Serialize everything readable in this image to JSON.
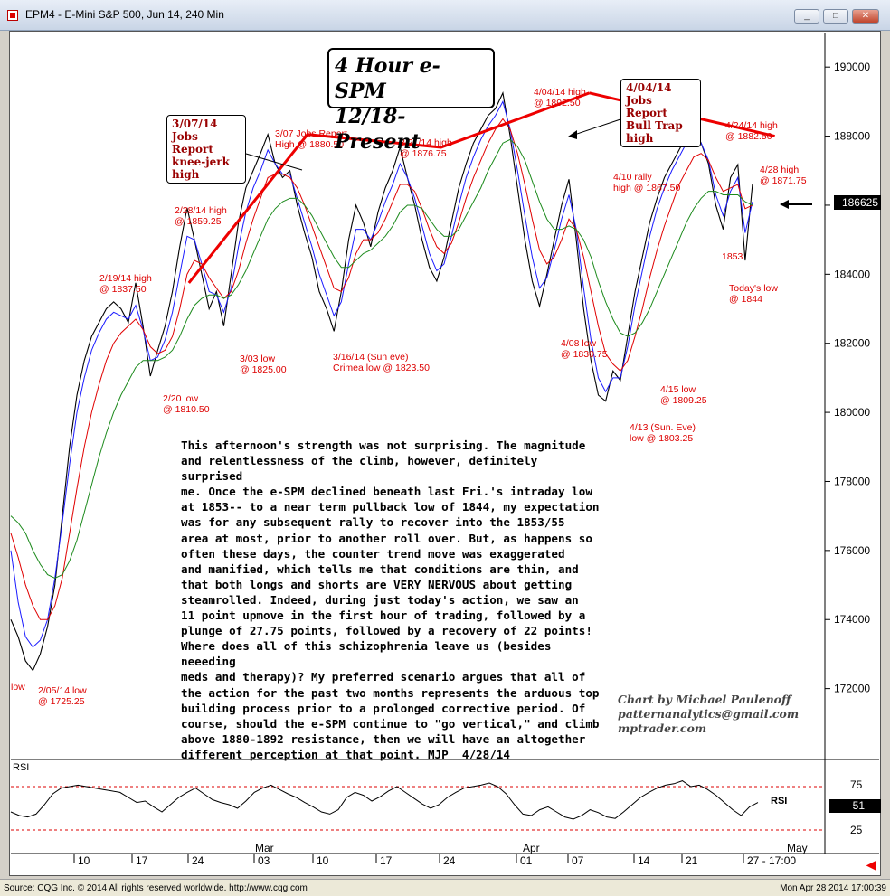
{
  "window": {
    "title": "EPM4 - E-Mini S&P 500, Jun 14, 240 Min",
    "minimize": "_",
    "maximize": "□",
    "close": "✕"
  },
  "chart_title": [
    "4 Hour e-SPM",
    "12/18-Present"
  ],
  "last_price": "186625",
  "rsi": {
    "label": "RSI",
    "legend": "RSI",
    "value": "51",
    "levels": [
      "75",
      "25"
    ]
  },
  "y_axis": {
    "labels": [
      "190000",
      "188000",
      "186000",
      "184000",
      "182000",
      "180000",
      "178000",
      "176000",
      "174000",
      "172000"
    ]
  },
  "x_axis": {
    "day_labels": [
      "10",
      "17",
      "24",
      "03",
      "10",
      "17",
      "24",
      "01",
      "07",
      "14",
      "21",
      "27 - 17:00"
    ],
    "month_labels": [
      "Mar",
      "Apr",
      "May"
    ]
  },
  "callouts": [
    {
      "lines": [
        "3/07/14",
        "Jobs Report",
        "knee-jerk",
        "high"
      ]
    },
    {
      "lines": [
        "4/04/14",
        "Jobs Report",
        "Bull Trap",
        "high"
      ]
    }
  ],
  "annotations": [
    {
      "lines": [
        "3/07 Jobs Report",
        "High @ 1880.50"
      ]
    },
    {
      "lines": [
        "3/21/14 high",
        "@ 1876.75"
      ]
    },
    {
      "lines": [
        "4/04/14 high",
        "@ 1892.50"
      ]
    },
    {
      "lines": [
        "4/24/14 high",
        "@ 1882.50"
      ]
    },
    {
      "lines": [
        "4/28 high",
        "@ 1871.75"
      ]
    },
    {
      "lines": [
        "4/10 rally",
        "high @ 1867.50"
      ]
    },
    {
      "lines": [
        "2/28/14 high",
        "@ 1859.25"
      ]
    },
    {
      "lines": [
        "2/19/14  high",
        "@ 1837.50"
      ]
    },
    {
      "lines": [
        "1853"
      ]
    },
    {
      "lines": [
        "Today's low",
        "@ 1844"
      ]
    },
    {
      "lines": [
        "3/03 low",
        "@ 1825.00"
      ]
    },
    {
      "lines": [
        "3/16/14 (Sun eve)",
        "Crimea low @ 1823.50"
      ]
    },
    {
      "lines": [
        "4/08 low",
        "@ 1830.75"
      ]
    },
    {
      "lines": [
        "2/20 low",
        "@ 1810.50"
      ]
    },
    {
      "lines": [
        "4/15 low",
        "@ 1809.25"
      ]
    },
    {
      "lines": [
        "4/13 (Sun. Eve)",
        "low @ 1803.25"
      ]
    },
    {
      "lines": [
        "2/05/14 low",
        "@ 1725.25"
      ]
    },
    {
      "lines": [
        "low"
      ]
    }
  ],
  "commentary": "This afternoon's strength was not surprising. The magnitude\nand relentlessness of the climb, however, definitely surprised\nme. Once the e-SPM declined beneath last Fri.'s intraday low\nat 1853-- to a near term pullback low of 1844, my expectation\nwas for any subsequent rally to recover into the 1853/55\narea at most, prior to another roll over. But, as happens so\noften these days, the counter trend move was exaggerated\nand manified, which tells me that conditions are thin, and\nthat both longs and shorts are VERY NERVOUS about getting\nsteamrolled. Indeed, during just today's action, we saw an\n11 point upmove in the first hour of trading, followed by a\nplunge of 27.75 points, followed by a recovery of 22 points!\nWhere does all of this schizophrenia leave us (besides neeeding\nmeds and therapy)? My preferred scenario argues that all of\nthe action for the past two months represents the arduous top\nbuilding process prior to a prolonged corrective period. Of\ncourse, should the e-SPM continue to \"go vertical,\" and climb\nabove 1880-1892 resistance, then we will have an altogether\ndifferent perception at that point. MJP  4/28/14",
  "credit": [
    "Chart by Michael Paulenoff",
    "patternanalytics@gmail.com",
    "mptrader.com"
  ],
  "status": {
    "left": "Source: CQG Inc. © 2014 All rights reserved worldwide. http://www.cqg.com",
    "right": "Mon Apr 28 2014 17:00:39"
  },
  "chart_data": {
    "type": "line",
    "title": "4 Hour e-SPM 12/18-Present",
    "ylim": [
      1700,
      1910
    ],
    "y_ticks": [
      1720,
      1740,
      1760,
      1780,
      1800,
      1820,
      1840,
      1860,
      1880,
      1900
    ],
    "series": [
      {
        "values": [
          1740,
          1735,
          1728,
          1725.25,
          1730,
          1738,
          1750,
          1770,
          1790,
          1805,
          1815,
          1822,
          1826,
          1830,
          1832,
          1830,
          1826,
          1837.5,
          1825,
          1810.5,
          1818,
          1825,
          1835,
          1848,
          1859.25,
          1850,
          1840,
          1830,
          1835,
          1825,
          1840,
          1855,
          1865,
          1870,
          1875,
          1880.5,
          1872,
          1868,
          1870,
          1860,
          1852,
          1845,
          1835,
          1830,
          1823.5,
          1835,
          1850,
          1860,
          1855,
          1848,
          1858,
          1865,
          1870,
          1876.75,
          1868,
          1860,
          1850,
          1842,
          1838,
          1845,
          1855,
          1865,
          1872,
          1878,
          1882,
          1886,
          1888,
          1892.5,
          1880,
          1865,
          1850,
          1838,
          1830.75,
          1840,
          1850,
          1860,
          1867.5,
          1850,
          1830,
          1815,
          1805,
          1803.25,
          1812,
          1809.25,
          1822,
          1835,
          1845,
          1855,
          1862,
          1868,
          1872,
          1876,
          1880,
          1882.5,
          1878,
          1872,
          1860,
          1853,
          1868,
          1871.75,
          1844,
          1866.25
        ]
      },
      {
        "values": [
          1760,
          1745,
          1735,
          1732,
          1734,
          1740,
          1752,
          1768,
          1785,
          1800,
          1810,
          1818,
          1823,
          1827,
          1829,
          1828,
          1827,
          1831,
          1824,
          1815,
          1816,
          1821,
          1829,
          1840,
          1851,
          1850,
          1843,
          1835,
          1834,
          1829,
          1836,
          1848,
          1858,
          1865,
          1870,
          1876,
          1872,
          1869,
          1869,
          1862,
          1855,
          1848,
          1840,
          1834,
          1828,
          1832,
          1843,
          1853,
          1853,
          1850,
          1855,
          1861,
          1866,
          1872,
          1868,
          1862,
          1854,
          1846,
          1841,
          1843,
          1851,
          1860,
          1868,
          1874,
          1879,
          1883,
          1886,
          1890,
          1882,
          1870,
          1857,
          1845,
          1836,
          1839,
          1847,
          1856,
          1863,
          1853,
          1836,
          1821,
          1810,
          1806,
          1810,
          1810,
          1819,
          1831,
          1841,
          1851,
          1859,
          1865,
          1870,
          1874,
          1878,
          1881,
          1878,
          1873,
          1863,
          1857,
          1864,
          1868,
          1852,
          1861
        ]
      },
      {
        "values": [
          1765,
          1758,
          1750,
          1744,
          1740,
          1740,
          1744,
          1752,
          1765,
          1778,
          1790,
          1800,
          1808,
          1815,
          1820,
          1823,
          1825,
          1827,
          1824,
          1819,
          1817,
          1818,
          1822,
          1830,
          1840,
          1844,
          1843,
          1839,
          1836,
          1833,
          1835,
          1841,
          1849,
          1856,
          1862,
          1868,
          1869,
          1869,
          1868,
          1865,
          1860,
          1854,
          1848,
          1842,
          1836,
          1835,
          1839,
          1846,
          1850,
          1850,
          1852,
          1856,
          1861,
          1866,
          1866,
          1864,
          1859,
          1853,
          1848,
          1846,
          1849,
          1855,
          1862,
          1868,
          1873,
          1878,
          1882,
          1885,
          1882,
          1875,
          1866,
          1856,
          1847,
          1843,
          1845,
          1850,
          1856,
          1853,
          1845,
          1835,
          1825,
          1817,
          1814,
          1812,
          1815,
          1822,
          1830,
          1839,
          1847,
          1854,
          1860,
          1866,
          1870,
          1874,
          1875,
          1873,
          1868,
          1864,
          1865,
          1866,
          1859,
          1860
        ]
      },
      {
        "values": [
          1770,
          1768,
          1765,
          1760,
          1756,
          1753,
          1752,
          1753,
          1757,
          1763,
          1771,
          1779,
          1787,
          1794,
          1800,
          1805,
          1809,
          1813,
          1815,
          1815,
          1815,
          1816,
          1818,
          1822,
          1827,
          1831,
          1833,
          1834,
          1834,
          1833,
          1834,
          1837,
          1841,
          1846,
          1851,
          1856,
          1859,
          1861,
          1862,
          1862,
          1860,
          1857,
          1853,
          1849,
          1845,
          1842,
          1842,
          1844,
          1846,
          1847,
          1849,
          1851,
          1854,
          1858,
          1860,
          1860,
          1859,
          1856,
          1853,
          1851,
          1851,
          1853,
          1857,
          1861,
          1865,
          1870,
          1874,
          1878,
          1879,
          1877,
          1873,
          1867,
          1861,
          1856,
          1853,
          1853,
          1854,
          1853,
          1850,
          1845,
          1838,
          1832,
          1827,
          1823,
          1822,
          1823,
          1826,
          1830,
          1835,
          1840,
          1845,
          1850,
          1855,
          1859,
          1862,
          1864,
          1864,
          1863,
          1863,
          1863,
          1861,
          1860
        ]
      }
    ],
    "rsi_values": [
      35,
      30,
      28,
      32,
      45,
      60,
      68,
      70,
      72,
      70,
      68,
      66,
      64,
      62,
      55,
      48,
      50,
      42,
      35,
      45,
      55,
      62,
      68,
      60,
      52,
      48,
      45,
      40,
      50,
      62,
      68,
      72,
      66,
      60,
      55,
      48,
      42,
      35,
      32,
      38,
      55,
      62,
      58,
      50,
      56,
      64,
      70,
      62,
      54,
      46,
      40,
      45,
      55,
      62,
      68,
      70,
      72,
      75,
      70,
      60,
      45,
      32,
      30,
      38,
      42,
      35,
      28,
      25,
      30,
      38,
      34,
      28,
      26,
      35,
      45,
      55,
      62,
      68,
      72,
      74,
      78,
      70,
      72,
      66,
      58,
      48,
      38,
      30,
      42,
      48
    ],
    "trendlines": [
      {
        "points": [
          [
            0.24,
            1837.5
          ],
          [
            0.4,
            1880.5
          ],
          [
            0.58,
            1876.75
          ],
          [
            0.78,
            1892.5
          ]
        ]
      },
      {
        "points": [
          [
            0.78,
            1892.5
          ],
          [
            1.03,
            1880
          ]
        ]
      }
    ]
  }
}
